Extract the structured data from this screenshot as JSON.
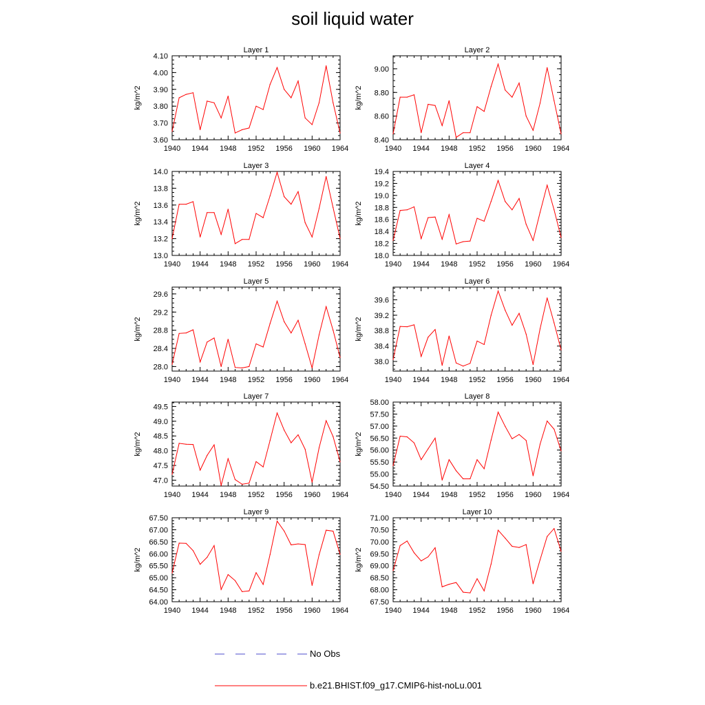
{
  "figure": {
    "title": "soil liquid water"
  },
  "legend": {
    "entries": [
      {
        "label": "No Obs",
        "color": "#4b4bcc",
        "dash": "dashed"
      },
      {
        "label": "b.e21.BHIST.f09_g17.CMIP6-hist-noLu.001",
        "color": "#ff0000",
        "dash": "solid"
      }
    ]
  },
  "chart_data": [
    {
      "type": "line",
      "title": "Layer 1",
      "ylabel": "kg/m^2",
      "xlim": [
        1940,
        1964
      ],
      "ylim": [
        3.6,
        4.1
      ],
      "xticks": [
        1940,
        1944,
        1948,
        1952,
        1956,
        1960,
        1964
      ],
      "yticks": [
        "3.60",
        "3.70",
        "3.80",
        "3.90",
        "4.00",
        "4.10"
      ],
      "x": [
        1940,
        1941,
        1942,
        1943,
        1944,
        1945,
        1946,
        1947,
        1948,
        1949,
        1950,
        1951,
        1952,
        1953,
        1954,
        1955,
        1956,
        1957,
        1958,
        1959,
        1960,
        1961,
        1962,
        1963,
        1964
      ],
      "series": [
        {
          "name": "b.e21.BHIST.f09_g17.CMIP6-hist-noLu.001",
          "color": "#ff0000",
          "values": [
            3.65,
            3.85,
            3.87,
            3.88,
            3.66,
            3.83,
            3.82,
            3.73,
            3.86,
            3.64,
            3.66,
            3.67,
            3.8,
            3.78,
            3.93,
            4.03,
            3.9,
            3.85,
            3.95,
            3.73,
            3.69,
            3.82,
            4.04,
            3.82,
            3.64
          ]
        }
      ]
    },
    {
      "type": "line",
      "title": "Layer 2",
      "ylabel": "kg/m^2",
      "xlim": [
        1940,
        1964
      ],
      "ylim": [
        8.4,
        9.11
      ],
      "xticks": [
        1940,
        1944,
        1948,
        1952,
        1956,
        1960,
        1964
      ],
      "yticks": [
        "8.40",
        "8.60",
        "8.80",
        "9.00"
      ],
      "x": [
        1940,
        1941,
        1942,
        1943,
        1944,
        1945,
        1946,
        1947,
        1948,
        1949,
        1950,
        1951,
        1952,
        1953,
        1954,
        1955,
        1956,
        1957,
        1958,
        1959,
        1960,
        1961,
        1962,
        1963,
        1964
      ],
      "series": [
        {
          "name": "b.e21.BHIST.f09_g17.CMIP6-hist-noLu.001",
          "color": "#ff0000",
          "values": [
            8.45,
            8.76,
            8.76,
            8.78,
            8.46,
            8.7,
            8.69,
            8.52,
            8.73,
            8.42,
            8.46,
            8.46,
            8.68,
            8.64,
            8.85,
            9.04,
            8.82,
            8.76,
            8.88,
            8.6,
            8.48,
            8.71,
            9.01,
            8.73,
            8.45
          ]
        }
      ]
    },
    {
      "type": "line",
      "title": "Layer 3",
      "ylabel": "kg/m^2",
      "xlim": [
        1940,
        1964
      ],
      "ylim": [
        13.0,
        14.0
      ],
      "xticks": [
        1940,
        1944,
        1948,
        1952,
        1956,
        1960,
        1964
      ],
      "yticks": [
        "13.0",
        "13.2",
        "13.4",
        "13.6",
        "13.8",
        "14.0"
      ],
      "x": [
        1940,
        1941,
        1942,
        1943,
        1944,
        1945,
        1946,
        1947,
        1948,
        1949,
        1950,
        1951,
        1952,
        1953,
        1954,
        1955,
        1956,
        1957,
        1958,
        1959,
        1960,
        1961,
        1962,
        1963,
        1964
      ],
      "series": [
        {
          "name": "b.e21.BHIST.f09_g17.CMIP6-hist-noLu.001",
          "color": "#ff0000",
          "values": [
            13.2,
            13.61,
            13.61,
            13.64,
            13.22,
            13.51,
            13.51,
            13.25,
            13.55,
            13.14,
            13.19,
            13.19,
            13.5,
            13.45,
            13.71,
            13.99,
            13.7,
            13.61,
            13.76,
            13.39,
            13.22,
            13.56,
            13.94,
            13.57,
            13.2
          ]
        }
      ]
    },
    {
      "type": "line",
      "title": "Layer 4",
      "ylabel": "kg/m^2",
      "xlim": [
        1940,
        1964
      ],
      "ylim": [
        18.0,
        19.4
      ],
      "xticks": [
        1940,
        1944,
        1948,
        1952,
        1956,
        1960,
        1964
      ],
      "yticks": [
        "18.0",
        "18.2",
        "18.4",
        "18.6",
        "18.8",
        "19.0",
        "19.2",
        "19.4"
      ],
      "x": [
        1940,
        1941,
        1942,
        1943,
        1944,
        1945,
        1946,
        1947,
        1948,
        1949,
        1950,
        1951,
        1952,
        1953,
        1954,
        1955,
        1956,
        1957,
        1958,
        1959,
        1960,
        1961,
        1962,
        1963,
        1964
      ],
      "series": [
        {
          "name": "b.e21.BHIST.f09_g17.CMIP6-hist-noLu.001",
          "color": "#ff0000",
          "values": [
            18.25,
            18.75,
            18.76,
            18.81,
            18.28,
            18.63,
            18.64,
            18.27,
            18.68,
            18.19,
            18.23,
            18.24,
            18.62,
            18.57,
            18.9,
            19.25,
            18.9,
            18.76,
            18.95,
            18.52,
            18.25,
            18.72,
            19.17,
            18.76,
            18.3
          ]
        }
      ]
    },
    {
      "type": "line",
      "title": "Layer 5",
      "ylabel": "kg/m^2",
      "xlim": [
        1940,
        1964
      ],
      "ylim": [
        27.9,
        29.75
      ],
      "xticks": [
        1940,
        1944,
        1948,
        1952,
        1956,
        1960,
        1964
      ],
      "yticks": [
        "28.0",
        "28.4",
        "28.8",
        "29.2",
        "29.6"
      ],
      "x": [
        1940,
        1941,
        1942,
        1943,
        1944,
        1945,
        1946,
        1947,
        1948,
        1949,
        1950,
        1951,
        1952,
        1953,
        1954,
        1955,
        1956,
        1957,
        1958,
        1959,
        1960,
        1961,
        1962,
        1963,
        1964
      ],
      "series": [
        {
          "name": "b.e21.BHIST.f09_g17.CMIP6-hist-noLu.001",
          "color": "#ff0000",
          "values": [
            28.05,
            28.73,
            28.74,
            28.81,
            28.1,
            28.54,
            28.63,
            28.0,
            28.6,
            27.98,
            27.97,
            28.0,
            28.5,
            28.43,
            28.95,
            29.44,
            28.99,
            28.74,
            29.02,
            28.5,
            27.97,
            28.7,
            29.32,
            28.8,
            28.2
          ]
        }
      ]
    },
    {
      "type": "line",
      "title": "Layer 6",
      "ylabel": "kg/m^2",
      "xlim": [
        1940,
        1964
      ],
      "ylim": [
        37.75,
        39.93
      ],
      "xticks": [
        1940,
        1944,
        1948,
        1952,
        1956,
        1960,
        1964
      ],
      "yticks": [
        "38.0",
        "38.4",
        "38.8",
        "39.2",
        "39.6"
      ],
      "x": [
        1940,
        1941,
        1942,
        1943,
        1944,
        1945,
        1946,
        1947,
        1948,
        1949,
        1950,
        1951,
        1952,
        1953,
        1954,
        1955,
        1956,
        1957,
        1958,
        1959,
        1960,
        1961,
        1962,
        1963,
        1964
      ],
      "series": [
        {
          "name": "b.e21.BHIST.f09_g17.CMIP6-hist-noLu.001",
          "color": "#ff0000",
          "values": [
            38.05,
            38.91,
            38.9,
            38.95,
            38.13,
            38.63,
            38.83,
            37.9,
            38.66,
            37.96,
            37.88,
            37.95,
            38.53,
            38.44,
            39.2,
            39.83,
            39.33,
            38.94,
            39.25,
            38.71,
            37.92,
            38.85,
            39.65,
            39.0,
            38.3
          ]
        }
      ]
    },
    {
      "type": "line",
      "title": "Layer 7",
      "ylabel": "kg/m^2",
      "xlim": [
        1940,
        1964
      ],
      "ylim": [
        46.8,
        49.65
      ],
      "xticks": [
        1940,
        1944,
        1948,
        1952,
        1956,
        1960,
        1964
      ],
      "yticks": [
        "47.0",
        "47.5",
        "48.0",
        "48.5",
        "49.0",
        "49.5"
      ],
      "x": [
        1940,
        1941,
        1942,
        1943,
        1944,
        1945,
        1946,
        1947,
        1948,
        1949,
        1950,
        1951,
        1952,
        1953,
        1954,
        1955,
        1956,
        1957,
        1958,
        1959,
        1960,
        1961,
        1962,
        1963,
        1964
      ],
      "series": [
        {
          "name": "b.e21.BHIST.f09_g17.CMIP6-hist-noLu.001",
          "color": "#ff0000",
          "values": [
            47.2,
            48.25,
            48.22,
            48.21,
            47.34,
            47.84,
            48.2,
            46.82,
            47.73,
            47.02,
            46.86,
            46.9,
            47.63,
            47.45,
            48.35,
            49.28,
            48.7,
            48.27,
            48.54,
            48.05,
            46.93,
            48.1,
            49.02,
            48.48,
            47.62
          ]
        }
      ]
    },
    {
      "type": "line",
      "title": "Layer 8",
      "ylabel": "kg/m^2",
      "xlim": [
        1940,
        1964
      ],
      "ylim": [
        54.5,
        58.0
      ],
      "xticks": [
        1940,
        1944,
        1948,
        1952,
        1956,
        1960,
        1964
      ],
      "yticks": [
        "54.50",
        "55.00",
        "55.50",
        "56.00",
        "56.50",
        "57.00",
        "57.50",
        "58.00"
      ],
      "x": [
        1940,
        1941,
        1942,
        1943,
        1944,
        1945,
        1946,
        1947,
        1948,
        1949,
        1950,
        1951,
        1952,
        1953,
        1954,
        1955,
        1956,
        1957,
        1958,
        1959,
        1960,
        1961,
        1962,
        1963,
        1964
      ],
      "series": [
        {
          "name": "b.e21.BHIST.f09_g17.CMIP6-hist-noLu.001",
          "color": "#ff0000",
          "values": [
            55.35,
            56.58,
            56.55,
            56.3,
            55.6,
            56.05,
            56.5,
            54.75,
            55.6,
            55.14,
            54.8,
            54.8,
            55.6,
            55.22,
            56.42,
            57.58,
            56.99,
            56.47,
            56.65,
            56.4,
            54.93,
            56.25,
            57.21,
            56.87,
            55.97
          ]
        }
      ]
    },
    {
      "type": "line",
      "title": "Layer 9",
      "ylabel": "kg/m^2",
      "xlim": [
        1940,
        1964
      ],
      "ylim": [
        64.0,
        67.5
      ],
      "xticks": [
        1940,
        1944,
        1948,
        1952,
        1956,
        1960,
        1964
      ],
      "yticks": [
        "64.00",
        "64.50",
        "65.00",
        "65.50",
        "66.00",
        "66.50",
        "67.00",
        "67.50"
      ],
      "x": [
        1940,
        1941,
        1942,
        1943,
        1944,
        1945,
        1946,
        1947,
        1948,
        1949,
        1950,
        1951,
        1952,
        1953,
        1954,
        1955,
        1956,
        1957,
        1958,
        1959,
        1960,
        1961,
        1962,
        1963,
        1964
      ],
      "series": [
        {
          "name": "b.e21.BHIST.f09_g17.CMIP6-hist-noLu.001",
          "color": "#ff0000",
          "values": [
            65.2,
            66.44,
            66.43,
            66.13,
            65.56,
            65.85,
            66.34,
            64.51,
            65.13,
            64.88,
            64.42,
            64.45,
            65.21,
            64.72,
            65.97,
            67.36,
            66.95,
            66.37,
            66.41,
            66.38,
            64.68,
            65.96,
            66.98,
            66.94,
            65.97
          ]
        }
      ]
    },
    {
      "type": "line",
      "title": "Layer 10",
      "ylabel": "kg/m^2",
      "xlim": [
        1940,
        1964
      ],
      "ylim": [
        67.5,
        71.0
      ],
      "xticks": [
        1940,
        1944,
        1948,
        1952,
        1956,
        1960,
        1964
      ],
      "yticks": [
        "67.50",
        "68.00",
        "68.50",
        "69.00",
        "69.50",
        "70.00",
        "70.50",
        "71.00"
      ],
      "x": [
        1940,
        1941,
        1942,
        1943,
        1944,
        1945,
        1946,
        1947,
        1948,
        1949,
        1950,
        1951,
        1952,
        1953,
        1954,
        1955,
        1956,
        1957,
        1958,
        1959,
        1960,
        1961,
        1962,
        1963,
        1964
      ],
      "series": [
        {
          "name": "b.e21.BHIST.f09_g17.CMIP6-hist-noLu.001",
          "color": "#ff0000",
          "values": [
            68.8,
            69.84,
            70.03,
            69.54,
            69.2,
            69.37,
            69.75,
            68.12,
            68.23,
            68.3,
            67.9,
            67.87,
            68.46,
            67.95,
            69.07,
            70.48,
            70.15,
            69.81,
            69.76,
            69.88,
            68.25,
            69.25,
            70.22,
            70.55,
            69.6
          ]
        }
      ]
    }
  ]
}
